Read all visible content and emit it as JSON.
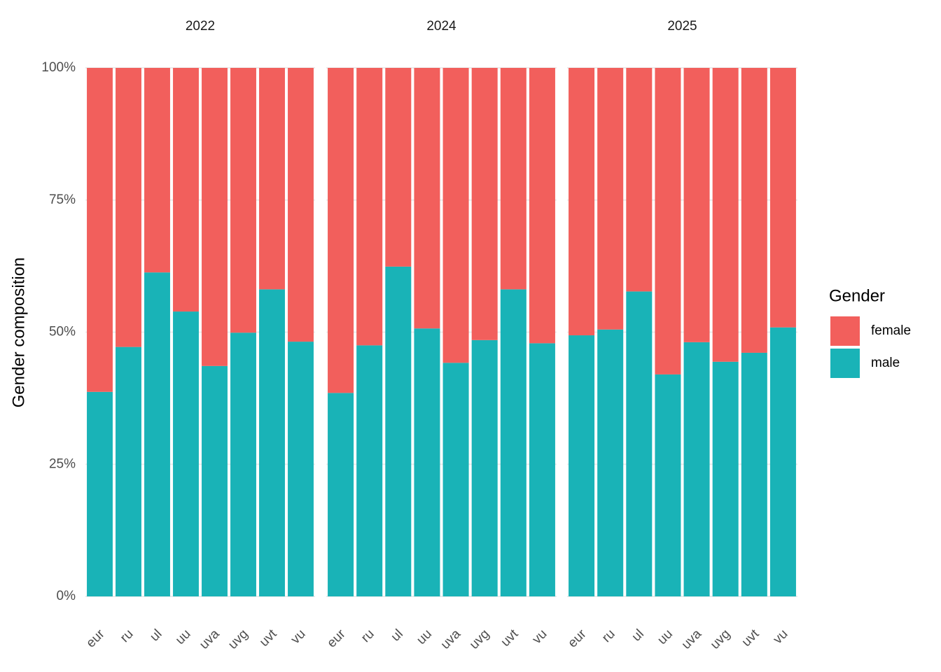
{
  "chart_data": {
    "type": "bar",
    "stacked": true,
    "ylabel": "Gender composition",
    "legend_title": "Gender",
    "legend": "right",
    "grid": true,
    "facets": [
      "2022",
      "2024",
      "2025"
    ],
    "categories": [
      "eur",
      "ru",
      "ul",
      "uu",
      "uva",
      "uvg",
      "uvt",
      "vu"
    ],
    "series": [
      {
        "name": "female",
        "color": "#f25f5c",
        "values": [
          [
            61.3,
            52.8,
            38.7,
            46.1,
            56.4,
            50.1,
            41.9,
            51.8
          ],
          [
            61.5,
            52.5,
            37.6,
            49.3,
            55.8,
            51.5,
            41.9,
            52.1
          ],
          [
            50.6,
            49.5,
            42.3,
            58.0,
            51.9,
            55.6,
            53.9,
            49.1
          ]
        ]
      },
      {
        "name": "male",
        "color": "#19b3b7",
        "values": [
          [
            38.7,
            47.2,
            61.3,
            53.9,
            43.6,
            49.9,
            58.1,
            48.2
          ],
          [
            38.5,
            47.5,
            62.4,
            50.7,
            44.2,
            48.5,
            58.1,
            47.9
          ],
          [
            49.4,
            50.5,
            57.7,
            42.0,
            48.1,
            44.4,
            46.1,
            50.9
          ]
        ]
      }
    ],
    "ylim": [
      0,
      100
    ],
    "yticks": [
      {
        "value": 0,
        "label": "0%"
      },
      {
        "value": 25,
        "label": "25%"
      },
      {
        "value": 50,
        "label": "50%"
      },
      {
        "value": 75,
        "label": "75%"
      },
      {
        "value": 100,
        "label": "100%"
      }
    ]
  }
}
